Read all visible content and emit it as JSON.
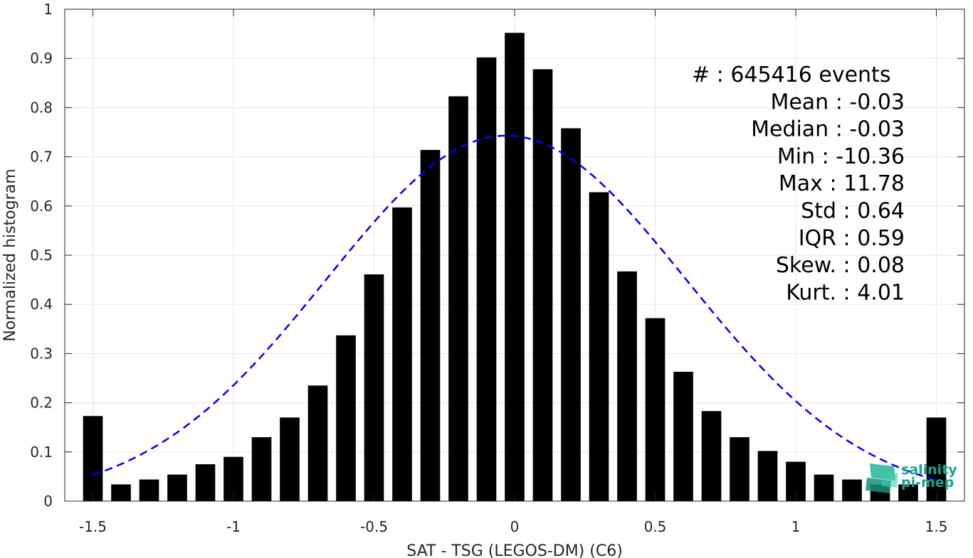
{
  "chart_data": {
    "type": "bar",
    "xlabel": "SAT - TSG (LEGOS-DM) (C6)",
    "ylabel": "Normalized histogram",
    "xlim": [
      -1.6,
      1.6
    ],
    "ylim": [
      0,
      1
    ],
    "grid": true,
    "x_ticks": [
      -1.5,
      -1,
      -0.5,
      0,
      0.5,
      1,
      1.5
    ],
    "x_tick_labels": [
      "-1.5",
      "-1",
      "-0.5",
      "0",
      "0.5",
      "1",
      "1.5"
    ],
    "y_ticks": [
      0,
      0.1,
      0.2,
      0.3,
      0.4,
      0.5,
      0.6,
      0.7,
      0.8,
      0.9,
      1
    ],
    "y_tick_labels": [
      "0",
      "0.1",
      "0.2",
      "0.3",
      "0.4",
      "0.5",
      "0.6",
      "0.7",
      "0.8",
      "0.9",
      "1"
    ],
    "bar_width": 0.07,
    "bar_color": "#000000",
    "x": [
      -1.5,
      -1.4,
      -1.3,
      -1.2,
      -1.1,
      -1.0,
      -0.9,
      -0.8,
      -0.7,
      -0.6,
      -0.5,
      -0.4,
      -0.3,
      -0.2,
      -0.1,
      0.0,
      0.1,
      0.2,
      0.3,
      0.4,
      0.5,
      0.6,
      0.7,
      0.8,
      0.9,
      1.0,
      1.1,
      1.2,
      1.3,
      1.4,
      1.5
    ],
    "values": [
      0.173,
      0.034,
      0.044,
      0.054,
      0.075,
      0.09,
      0.13,
      0.17,
      0.235,
      0.337,
      0.461,
      0.597,
      0.714,
      0.823,
      0.902,
      0.952,
      0.878,
      0.758,
      0.628,
      0.467,
      0.372,
      0.263,
      0.183,
      0.13,
      0.102,
      0.08,
      0.054,
      0.044,
      0.034,
      0.034,
      0.17
    ],
    "fit_curve": {
      "style": "dashed",
      "color": "#0000ff",
      "mean": -0.03,
      "std": 0.64,
      "peak": 0.743,
      "x_range": [
        -1.5,
        1.5
      ]
    },
    "annotations": [
      "#  : 645416 events",
      "Mean : -0.03",
      "Median : -0.03",
      "Min : -10.36",
      "Max : 11.78",
      "Std : 0.64",
      "IQR : 0.59",
      "Skew. : 0.08",
      "Kurt. : 4.01"
    ]
  },
  "logo": {
    "line1": "salinity",
    "line2": "pi-mep",
    "color": "#1aa38a"
  }
}
